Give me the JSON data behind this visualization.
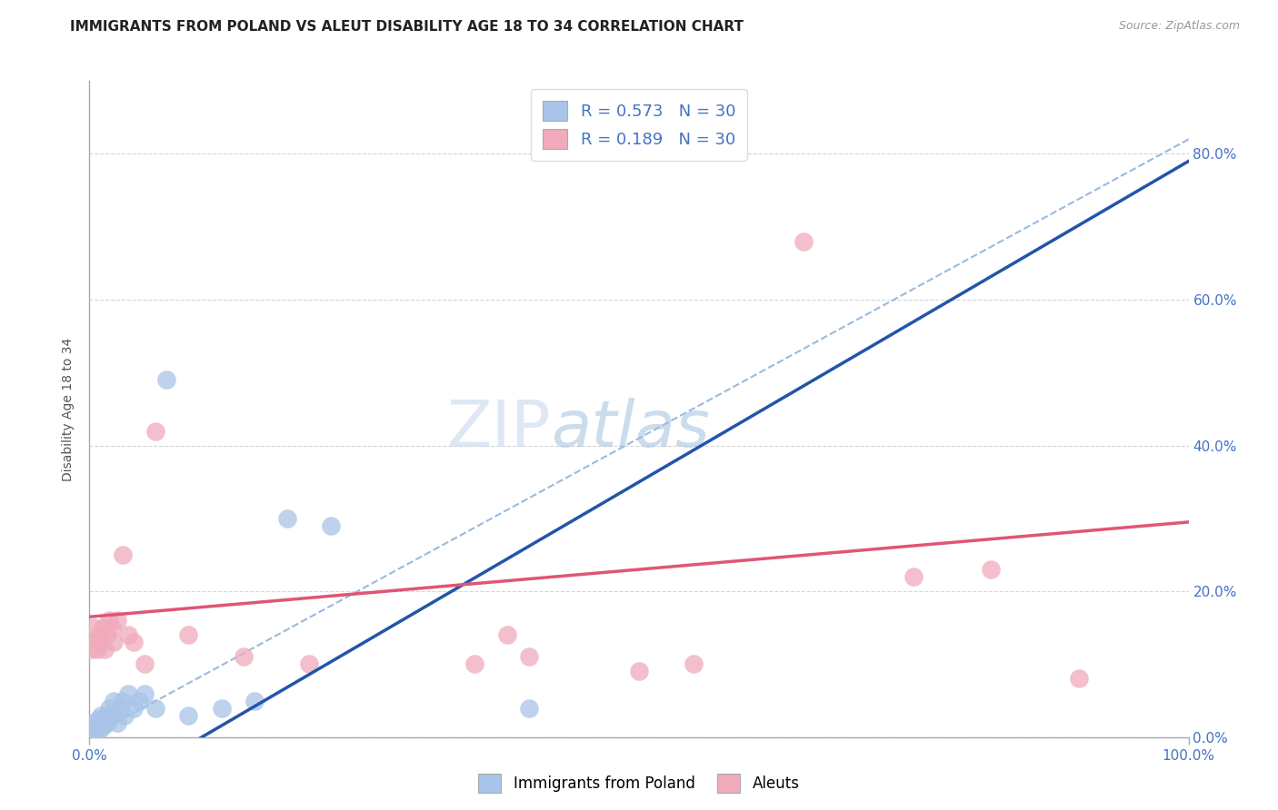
{
  "title": "IMMIGRANTS FROM POLAND VS ALEUT DISABILITY AGE 18 TO 34 CORRELATION CHART",
  "source": "Source: ZipAtlas.com",
  "xlabel_blue": "Immigrants from Poland",
  "xlabel_pink": "Aleuts",
  "ylabel": "Disability Age 18 to 34",
  "R_blue": 0.573,
  "N_blue": 30,
  "R_pink": 0.189,
  "N_pink": 30,
  "blue_color": "#a8c4e8",
  "pink_color": "#f0aabb",
  "line_blue_color": "#2255aa",
  "line_pink_color": "#e05575",
  "dash_line_color": "#99bbdd",
  "watermark_color": "#c5d8ef",
  "xmin": 0.0,
  "xmax": 1.0,
  "ymin": 0.0,
  "ymax": 0.9,
  "grid_color": "#cccccc",
  "background_color": "#ffffff",
  "title_fontsize": 11,
  "axis_label_fontsize": 10,
  "tick_fontsize": 11,
  "tick_color": "#4472c4",
  "ytick_labels": [
    "0.0%",
    "20.0%",
    "40.0%",
    "60.0%",
    "80.0%"
  ],
  "ytick_values": [
    0.0,
    0.2,
    0.4,
    0.6,
    0.8
  ],
  "xtick_labels": [
    "0.0%",
    "100.0%"
  ],
  "xtick_values": [
    0.0,
    1.0
  ],
  "blue_line_slope": 0.88,
  "blue_line_intercept": -0.09,
  "pink_line_slope": 0.13,
  "pink_line_intercept": 0.165,
  "dash_line_slope": 0.82,
  "dash_line_intercept": 0.0,
  "blue_x": [
    0.003,
    0.005,
    0.006,
    0.008,
    0.009,
    0.01,
    0.011,
    0.012,
    0.013,
    0.015,
    0.016,
    0.018,
    0.02,
    0.022,
    0.025,
    0.028,
    0.03,
    0.032,
    0.035,
    0.04,
    0.045,
    0.05,
    0.06,
    0.07,
    0.09,
    0.12,
    0.15,
    0.18,
    0.22,
    0.4
  ],
  "blue_y": [
    0.01,
    0.02,
    0.015,
    0.025,
    0.01,
    0.03,
    0.02,
    0.015,
    0.025,
    0.03,
    0.02,
    0.04,
    0.03,
    0.05,
    0.02,
    0.04,
    0.05,
    0.03,
    0.06,
    0.04,
    0.05,
    0.06,
    0.04,
    0.49,
    0.03,
    0.04,
    0.05,
    0.3,
    0.29,
    0.04
  ],
  "pink_x": [
    0.002,
    0.004,
    0.006,
    0.007,
    0.009,
    0.01,
    0.012,
    0.014,
    0.016,
    0.018,
    0.02,
    0.022,
    0.025,
    0.03,
    0.035,
    0.04,
    0.05,
    0.06,
    0.09,
    0.14,
    0.2,
    0.35,
    0.38,
    0.4,
    0.5,
    0.55,
    0.65,
    0.75,
    0.82,
    0.9
  ],
  "pink_y": [
    0.12,
    0.15,
    0.13,
    0.12,
    0.14,
    0.13,
    0.15,
    0.12,
    0.14,
    0.16,
    0.15,
    0.13,
    0.16,
    0.25,
    0.14,
    0.13,
    0.1,
    0.42,
    0.14,
    0.11,
    0.1,
    0.1,
    0.14,
    0.11,
    0.09,
    0.1,
    0.68,
    0.22,
    0.23,
    0.08
  ]
}
